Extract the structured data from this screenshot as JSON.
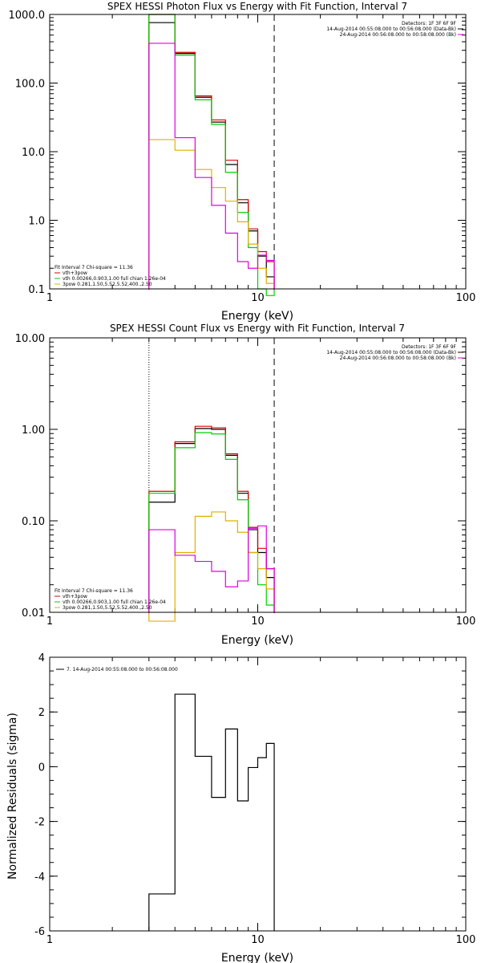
{
  "colors": {
    "total": "#000000",
    "sum": "#e00000",
    "thermal": "#00d000",
    "powerlaw": "#e0b000",
    "background": "#e000e0"
  },
  "chart_data": [
    {
      "type": "line",
      "title": "SPEX HESSI Photon Flux vs Energy with Fit Function, Interval 7",
      "xlabel": "Energy (keV)",
      "ylabel": "",
      "xscale": "log",
      "yscale": "log",
      "xlim": [
        1,
        100
      ],
      "ylim": [
        0.1,
        1000
      ],
      "xticks": [
        {
          "v": 1,
          "label": "1"
        },
        {
          "v": 10,
          "label": "10"
        },
        {
          "v": 100,
          "label": "100"
        }
      ],
      "yticks": [
        {
          "v": 0.1,
          "label": "0.1"
        },
        {
          "v": 1,
          "label": "1.0"
        },
        {
          "v": 10,
          "label": "10.0"
        },
        {
          "v": 100,
          "label": "100.0"
        },
        {
          "v": 1000,
          "label": "1000.0"
        }
      ],
      "bin_edges": [
        3,
        4,
        5,
        6,
        7,
        8,
        9,
        10,
        11,
        12
      ],
      "series": [
        {
          "key": "total",
          "values": [
            760,
            270,
            62,
            27,
            6.5,
            1.8,
            0.7,
            0.3,
            0.15
          ]
        },
        {
          "key": "sum",
          "values": [
            1000,
            280,
            65,
            29,
            7.5,
            2.0,
            0.75,
            0.35,
            0.25
          ]
        },
        {
          "key": "thermal",
          "values": [
            1000,
            255,
            57,
            25,
            5.0,
            1.3,
            0.4,
            0.1,
            0.08
          ]
        },
        {
          "key": "powerlaw",
          "values": [
            15,
            10.5,
            5.5,
            3.0,
            1.9,
            0.95,
            0.45,
            0.2,
            0.12
          ]
        },
        {
          "key": "background",
          "values": [
            380,
            16,
            4.2,
            1.65,
            0.65,
            0.25,
            0.2,
            0.31,
            0.26
          ]
        }
      ],
      "vlines": [
        {
          "x": 3,
          "style": "dotted"
        },
        {
          "x": 12,
          "style": "dashed"
        }
      ],
      "legend_tr": [
        {
          "text": "Detectors: 1F 3F 6F 9F",
          "color": "#000000"
        },
        {
          "text": "14-Aug-2014 00:55:08.000 to 00:56:08.000 (Data-Bk)",
          "color": "#000000"
        },
        {
          "text": "24-Aug-2014 00:56:08.000 to 00:58:08.000 (Bk)",
          "color": "#e000e0"
        }
      ],
      "legend_bl": [
        {
          "text": "Fit Interval  7    Chi-square = 11.36",
          "color": ""
        },
        {
          "text": "vth+3pow",
          "color": "#e00000"
        },
        {
          "text": "vth 0.00266,0.903,1.00   full chian 1.26e-04",
          "color": "#00d000"
        },
        {
          "text": "3pow 0.281,1.50,5.52,5.52,400.,2.50",
          "color": "#e0b000"
        }
      ]
    },
    {
      "type": "line",
      "title": "SPEX HESSI Count Flux vs Energy with Fit Function, Interval 7",
      "xlabel": "Energy (keV)",
      "ylabel": "",
      "xscale": "log",
      "yscale": "log",
      "xlim": [
        1,
        100
      ],
      "ylim": [
        0.01,
        10
      ],
      "xticks": [
        {
          "v": 1,
          "label": "1"
        },
        {
          "v": 10,
          "label": "10"
        },
        {
          "v": 100,
          "label": "100"
        }
      ],
      "yticks": [
        {
          "v": 0.01,
          "label": "0.01"
        },
        {
          "v": 0.1,
          "label": "0.10"
        },
        {
          "v": 1,
          "label": "1.00"
        },
        {
          "v": 10,
          "label": "10.00"
        }
      ],
      "bin_edges": [
        3,
        4,
        5,
        6,
        7,
        8,
        9,
        10,
        11,
        12
      ],
      "series": [
        {
          "key": "total",
          "values": [
            0.16,
            0.7,
            1.02,
            1.0,
            0.52,
            0.2,
            0.08,
            0.045,
            0.024
          ]
        },
        {
          "key": "sum",
          "values": [
            0.21,
            0.73,
            1.08,
            1.04,
            0.54,
            0.21,
            0.085,
            0.05,
            0.03
          ]
        },
        {
          "key": "thermal",
          "values": [
            0.2,
            0.63,
            0.92,
            0.89,
            0.47,
            0.17,
            0.045,
            0.02,
            0.012
          ]
        },
        {
          "key": "powerlaw",
          "values": [
            0.008,
            0.045,
            0.112,
            0.125,
            0.1,
            0.075,
            0.045,
            0.03,
            0.018
          ]
        },
        {
          "key": "background",
          "values": [
            0.08,
            0.042,
            0.036,
            0.028,
            0.019,
            0.022,
            0.083,
            0.088,
            0.03
          ]
        }
      ],
      "vlines": [
        {
          "x": 3,
          "style": "dotted"
        },
        {
          "x": 12,
          "style": "dashed"
        }
      ],
      "legend_tr": [
        {
          "text": "Detectors: 1F 3F 6F 9F",
          "color": "#000000"
        },
        {
          "text": "14-Aug-2014 00:55:08.000 to 00:56:08.000 (Data-Bk)",
          "color": "#000000"
        },
        {
          "text": "24-Aug-2014 00:56:08.000 to 00:58:08.000 (Bk)",
          "color": "#e000e0"
        }
      ],
      "legend_bl": [
        {
          "text": "Fit Interval  7    Chi-square = 11.36",
          "color": ""
        },
        {
          "text": "vth+3pow",
          "color": "#e00000"
        },
        {
          "text": "vth 0.00266,0.903,1.00   full chian 1.26e-04",
          "color": "#00d000"
        },
        {
          "text": "3pow 0.281,1.50,5.52,5.52,400.,2.50",
          "color": "#e0b000"
        }
      ]
    },
    {
      "type": "line",
      "title": "",
      "xlabel": "Energy (keV)",
      "ylabel": "Normalized Residuals (sigma)",
      "xscale": "log",
      "yscale": "linear",
      "xlim": [
        1,
        100
      ],
      "ylim": [
        -6,
        4
      ],
      "xticks": [
        {
          "v": 1,
          "label": "1"
        },
        {
          "v": 10,
          "label": "10"
        },
        {
          "v": 100,
          "label": "100"
        }
      ],
      "yticks": [
        {
          "v": -6,
          "label": "-6"
        },
        {
          "v": -4,
          "label": "-4"
        },
        {
          "v": -2,
          "label": "-2"
        },
        {
          "v": 0,
          "label": "0"
        },
        {
          "v": 2,
          "label": "2"
        },
        {
          "v": 4,
          "label": "4"
        }
      ],
      "bin_edges": [
        3,
        4,
        5,
        6,
        7,
        8,
        9,
        10,
        11,
        12
      ],
      "series": [
        {
          "key": "total",
          "values": [
            -4.65,
            2.65,
            0.38,
            -1.12,
            1.38,
            -1.25,
            -0.03,
            0.33,
            0.85
          ]
        }
      ],
      "vlines": [],
      "legend_tr": [],
      "legend_bl": [],
      "legend_tl": [
        {
          "text": "7. 14-Aug-2014 00:55:08.000 to 00:56:08.000",
          "color": "#000000"
        }
      ]
    }
  ]
}
